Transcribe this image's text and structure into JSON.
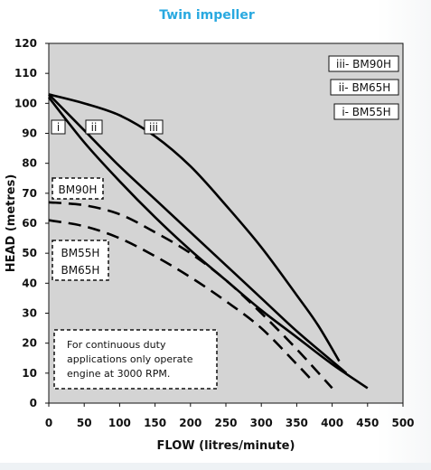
{
  "chart_data": {
    "type": "line",
    "title": "Twin impeller",
    "xlabel": "FLOW (litres/minute)",
    "ylabel": "HEAD (metres)",
    "xlim": [
      0,
      500
    ],
    "ylim": [
      0,
      120
    ],
    "x_ticks": [
      "0",
      "50",
      "100",
      "150",
      "200",
      "250",
      "300",
      "350",
      "400",
      "450",
      "500"
    ],
    "y_ticks": [
      "0",
      "10",
      "20",
      "30",
      "40",
      "50",
      "60",
      "70",
      "80",
      "90",
      "100",
      "110",
      "120"
    ],
    "grid": false,
    "series": [
      {
        "name": "iii- BM90H",
        "marker": "iii",
        "style": "solid",
        "x": [
          0,
          50,
          100,
          150,
          200,
          250,
          300,
          350,
          380,
          410
        ],
        "y": [
          103,
          100,
          96,
          89,
          79,
          66,
          52,
          36,
          26,
          14
        ]
      },
      {
        "name": "ii- BM65H",
        "marker": "ii",
        "style": "solid",
        "x": [
          0,
          50,
          100,
          150,
          200,
          250,
          300,
          350,
          400,
          420
        ],
        "y": [
          103,
          91,
          79,
          68,
          57,
          46,
          35,
          24,
          14,
          10
        ]
      },
      {
        "name": "i- BM55H",
        "marker": "i",
        "style": "solid",
        "x": [
          0,
          50,
          100,
          150,
          200,
          250,
          300,
          350,
          400,
          450
        ],
        "y": [
          102,
          87,
          74,
          62,
          51,
          41,
          31,
          22,
          13,
          5
        ]
      },
      {
        "name": "BM90H",
        "style": "dashed",
        "x": [
          0,
          50,
          100,
          150,
          200,
          250,
          300,
          350,
          400
        ],
        "y": [
          67,
          66,
          63,
          57,
          50,
          41,
          30,
          18,
          5
        ]
      },
      {
        "name": "BM55H/BM65H",
        "style": "dashed",
        "x": [
          0,
          50,
          100,
          150,
          200,
          250,
          300,
          350,
          370
        ],
        "y": [
          61,
          59,
          55,
          49,
          42,
          34,
          25,
          13,
          8
        ]
      }
    ]
  },
  "legend": {
    "items": [
      "iii- BM90H",
      "ii- BM65H",
      "i- BM55H"
    ]
  },
  "curve_markers": [
    "i",
    "ii",
    "iii"
  ],
  "dashed_labels": {
    "bm90h": "BM90H",
    "bm55h": "BM55H",
    "bm65h": "BM65H"
  },
  "note": {
    "line1": "For continuous duty",
    "line2": "applications only operate",
    "line3": "engine at 3000 RPM."
  },
  "colors": {
    "title": "#29a9e0",
    "plot_background": "#d4d4d4",
    "curve": "#000000"
  }
}
